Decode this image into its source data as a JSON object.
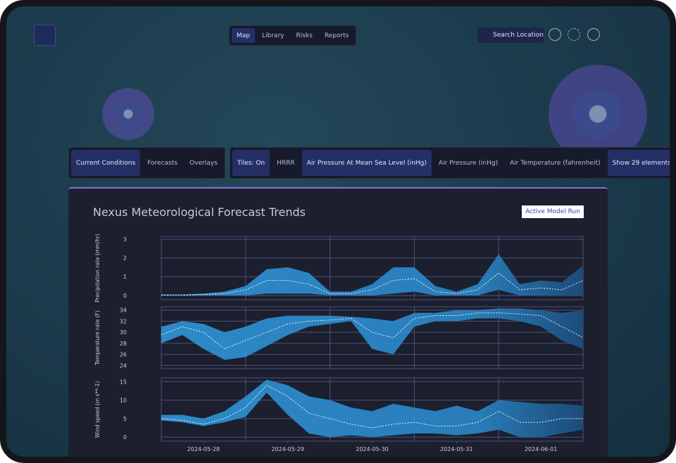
{
  "nav": {
    "items": [
      "Map",
      "Library",
      "Risks",
      "Reports"
    ],
    "search": "Search Location"
  },
  "toolbar": {
    "left": [
      "Current Conditions",
      "Forecasts",
      "Overlays"
    ],
    "right": [
      "Tiles: On",
      "HRRR",
      "Air Pressure At Mean Sea Level (inHg)",
      "Air Pressure (inHg)",
      "Air Temperature (fahrenheit)",
      "Show 29 elements"
    ]
  },
  "panel": {
    "title": "Nexus Meteorological Forecast Trends",
    "button": "Active Model Run"
  },
  "chart_data": [
    {
      "type": "band",
      "ylabel": "Precipitation rate (mm/hr)",
      "color": "#2f95d8",
      "ylim": [
        -0.23,
        3.15
      ],
      "yticks": [
        0,
        1,
        2,
        3
      ],
      "xlim": [
        "2024-05-28T00:00",
        "2024-06-02T00:00"
      ],
      "xgrid": [
        "2024-05-29T00:00",
        "2024-05-30T00:00",
        "2024-05-31T00:00",
        "2024-06-01T00:00"
      ],
      "x": [
        "2024-05-28T00:00",
        "2024-05-28T06:00",
        "2024-05-28T12:00",
        "2024-05-28T18:00",
        "2024-05-29T00:00",
        "2024-05-29T06:00",
        "2024-05-29T12:00",
        "2024-05-29T18:00",
        "2024-05-30T00:00",
        "2024-05-30T06:00",
        "2024-05-30T12:00",
        "2024-05-30T18:00",
        "2024-05-31T00:00",
        "2024-05-31T06:00",
        "2024-05-31T12:00",
        "2024-05-31T18:00",
        "2024-06-01T00:00",
        "2024-06-01T06:00",
        "2024-06-01T12:00",
        "2024-06-01T18:00",
        "2024-06-02T00:00"
      ],
      "upper": [
        0.05,
        0.05,
        0.1,
        0.2,
        0.5,
        1.4,
        1.5,
        1.2,
        0.2,
        0.2,
        0.6,
        1.5,
        1.5,
        0.5,
        0.2,
        0.6,
        2.2,
        0.6,
        0.8,
        0.7,
        1.6
      ],
      "mean": [
        0.02,
        0.02,
        0.05,
        0.1,
        0.3,
        0.8,
        0.8,
        0.6,
        0.1,
        0.1,
        0.3,
        0.8,
        0.9,
        0.2,
        0.1,
        0.3,
        1.2,
        0.3,
        0.4,
        0.3,
        0.8
      ],
      "lower": [
        0,
        0,
        0,
        0,
        0,
        0.1,
        0.1,
        0.1,
        0,
        0,
        0,
        0.1,
        0.2,
        0,
        0,
        0,
        0.3,
        0,
        0,
        0,
        0
      ]
    },
    {
      "type": "band",
      "ylabel": "Temperature rate (F)",
      "color": "#2f95d8",
      "ylim": [
        23.4,
        34.6
      ],
      "yticks": [
        24,
        26,
        28,
        30,
        32,
        34
      ],
      "xlim": [
        "2024-05-28T00:00",
        "2024-06-02T00:00"
      ],
      "xgrid": [
        "2024-05-29T00:00",
        "2024-05-30T00:00",
        "2024-05-31T00:00",
        "2024-06-01T00:00"
      ],
      "x": [
        "2024-05-28T00:00",
        "2024-05-28T06:00",
        "2024-05-28T12:00",
        "2024-05-28T18:00",
        "2024-05-29T00:00",
        "2024-05-29T06:00",
        "2024-05-29T12:00",
        "2024-05-29T18:00",
        "2024-05-30T00:00",
        "2024-05-30T06:00",
        "2024-05-30T12:00",
        "2024-05-30T18:00",
        "2024-05-31T00:00",
        "2024-05-31T06:00",
        "2024-05-31T12:00",
        "2024-05-31T18:00",
        "2024-06-01T00:00",
        "2024-06-01T06:00",
        "2024-06-01T12:00",
        "2024-06-01T18:00",
        "2024-06-02T00:00"
      ],
      "upper": [
        31,
        32,
        31.5,
        30,
        31,
        32.5,
        33,
        33,
        33,
        32.8,
        32.5,
        32,
        33.5,
        33.5,
        34,
        34,
        34.3,
        34.3,
        34,
        33.5,
        34
      ],
      "mean": [
        29.5,
        31,
        30,
        27,
        28.5,
        30,
        31.5,
        32,
        32.2,
        32.5,
        30,
        29,
        32.5,
        33,
        33,
        33.5,
        33.5,
        33.3,
        33,
        31,
        29
      ],
      "lower": [
        28,
        29.5,
        27,
        25,
        25.5,
        27.5,
        29.5,
        31,
        31.5,
        32,
        27,
        26,
        31,
        32,
        32,
        32.5,
        32.5,
        32,
        31,
        28.5,
        27
      ]
    },
    {
      "type": "band",
      "ylabel": "Wind speed (m s**-1)",
      "color": "#2f95d8",
      "ylim": [
        -1.1,
        16
      ],
      "yticks": [
        0,
        5,
        10,
        15
      ],
      "xlim": [
        "2024-05-28T00:00",
        "2024-06-02T00:00"
      ],
      "xgrid": [
        "2024-05-29T00:00",
        "2024-05-30T00:00",
        "2024-05-31T00:00",
        "2024-06-01T00:00"
      ],
      "xticks": [
        {
          "value": "2024-05-28T12:00",
          "label": "2024-05-28"
        },
        {
          "value": "2024-05-29T12:00",
          "label": "2024-05-29"
        },
        {
          "value": "2024-05-30T12:00",
          "label": "2024-05-30"
        },
        {
          "value": "2024-05-31T12:00",
          "label": "2024-05-31"
        },
        {
          "value": "2024-06-01T12:00",
          "label": "2024-06-01"
        }
      ],
      "x": [
        "2024-05-28T00:00",
        "2024-05-28T06:00",
        "2024-05-28T12:00",
        "2024-05-28T18:00",
        "2024-05-29T00:00",
        "2024-05-29T06:00",
        "2024-05-29T12:00",
        "2024-05-29T18:00",
        "2024-05-30T00:00",
        "2024-05-30T06:00",
        "2024-05-30T12:00",
        "2024-05-30T18:00",
        "2024-05-31T00:00",
        "2024-05-31T06:00",
        "2024-05-31T12:00",
        "2024-05-31T18:00",
        "2024-06-01T00:00",
        "2024-06-01T06:00",
        "2024-06-01T12:00",
        "2024-06-01T18:00",
        "2024-06-02T00:00"
      ],
      "upper": [
        6,
        6,
        5,
        7,
        11,
        15.5,
        14,
        11,
        10,
        8,
        7,
        9,
        8,
        7,
        8.5,
        7,
        10,
        9.5,
        9,
        9,
        8.5
      ],
      "mean": [
        5,
        4.5,
        3.5,
        5,
        8,
        14,
        11,
        6.5,
        5,
        3.5,
        2.5,
        3.5,
        4,
        3,
        3,
        4,
        7,
        4,
        4,
        5,
        5
      ],
      "lower": [
        4.5,
        4,
        3,
        4,
        5.5,
        12,
        6,
        1,
        0,
        0.5,
        0,
        0.5,
        1,
        1,
        0.5,
        1,
        2,
        0,
        0,
        1,
        2
      ]
    }
  ]
}
